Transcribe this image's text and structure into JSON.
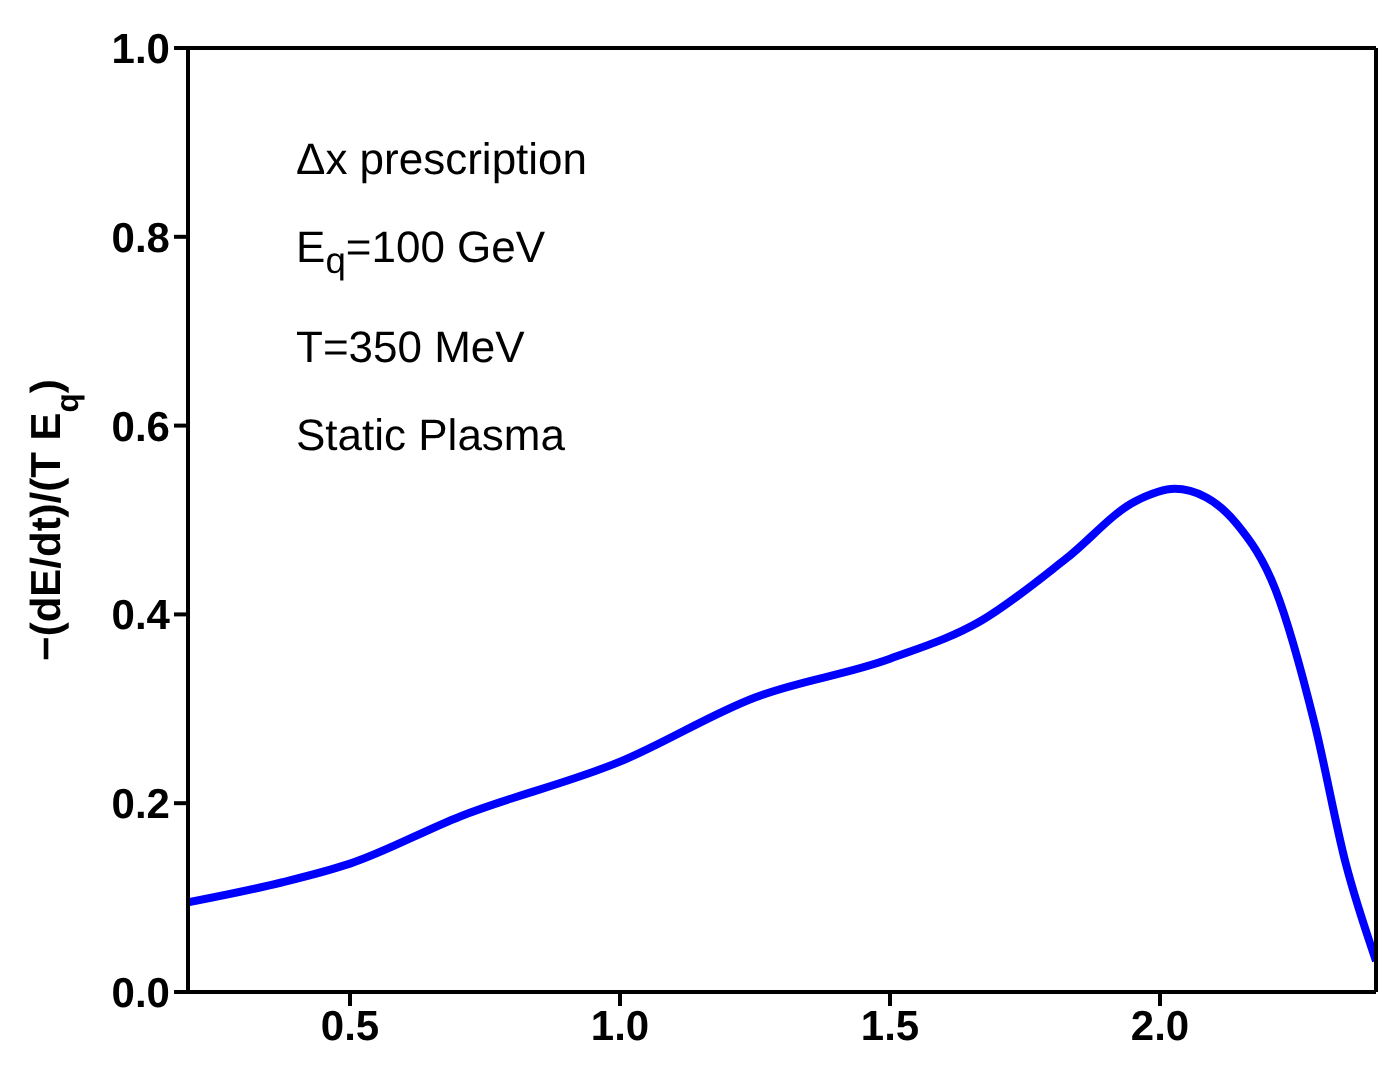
{
  "chart_data": {
    "type": "line",
    "ylabel": "−(dE/dt)/(T E$_{q}$)",
    "annotations": [
      "Δx prescription",
      "E$_{q}$=100 GeV",
      "T=350 MeV",
      "Static Plasma"
    ],
    "x": [
      0.2,
      0.373,
      0.5,
      0.704,
      1.0,
      1.25,
      1.5,
      1.668,
      1.826,
      1.955,
      2.027,
      2.085,
      2.142,
      2.214,
      2.286,
      2.344,
      2.4
    ],
    "series": [
      {
        "color": "#0000ff",
        "values": [
          0.095,
          0.116,
          0.136,
          0.186,
          0.244,
          0.312,
          0.353,
          0.393,
          0.459,
          0.52,
          0.533,
          0.524,
          0.496,
          0.426,
          0.285,
          0.136,
          0.033
        ]
      }
    ],
    "xlim": [
      0.2,
      2.4
    ],
    "ylim": [
      0,
      1
    ],
    "xticks": [
      {
        "value": 0.5,
        "label": "0.5"
      },
      {
        "value": 1,
        "label": "1.0"
      },
      {
        "value": 1.5,
        "label": "1.5"
      },
      {
        "value": 2,
        "label": "2.0"
      }
    ],
    "yticks": [
      {
        "value": 0,
        "label": "0.0"
      },
      {
        "value": 0.2,
        "label": "0.2"
      },
      {
        "value": 0.4,
        "label": "0.4"
      },
      {
        "value": 0.6,
        "label": "0.6"
      },
      {
        "value": 0.8,
        "label": "0.8"
      },
      {
        "value": 1,
        "label": "1.0"
      }
    ],
    "grid": false,
    "legend": false,
    "marker": "none",
    "line_style": "solid"
  }
}
